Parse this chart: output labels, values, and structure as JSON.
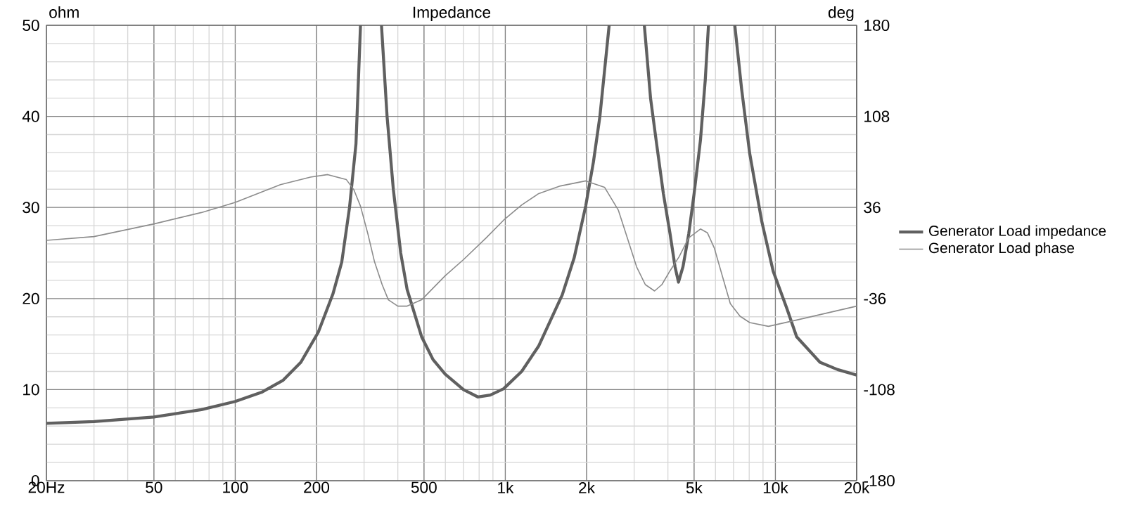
{
  "chart_data": {
    "type": "line",
    "title": "Impedance",
    "ylabel": "ohm",
    "y2label": "deg",
    "log": "x",
    "grid": true,
    "legend": "right",
    "xlim": [
      20,
      20000
    ],
    "ylim": [
      0,
      50
    ],
    "y2lim": [
      -180,
      180
    ],
    "xticks": [
      {
        "value": 20,
        "label": "20Hz"
      },
      50,
      100,
      200,
      500,
      {
        "value": 1000,
        "label": "1k"
      },
      {
        "value": 2000,
        "label": "2k"
      },
      {
        "value": 5000,
        "label": "5k"
      },
      {
        "value": 10000,
        "label": "10k"
      },
      {
        "value": 20000,
        "label": "20k"
      }
    ],
    "yticks": [
      0,
      10,
      20,
      30,
      40,
      50
    ],
    "y2ticks": [
      -180,
      -108,
      -36,
      36,
      108,
      180
    ],
    "series": [
      {
        "name": "Generator Load impedance",
        "color": "#606060",
        "axis": "y",
        "x": [
          20,
          30,
          50,
          75,
          100,
          125,
          150,
          175,
          203,
          230,
          248,
          265,
          280,
          291,
          320,
          348,
          365,
          385,
          410,
          433,
          490,
          540,
          599,
          700,
          791,
          880,
          986,
          1150,
          1330,
          1625,
          1800,
          1986,
          2120,
          2240,
          2424,
          2800,
          3272,
          3450,
          3617,
          3850,
          4075,
          4250,
          4378,
          4550,
          4778,
          5000,
          5280,
          5500,
          5653,
          6300,
          7077,
          7500,
          8036,
          8900,
          9815,
          11000,
          11990,
          14630,
          17000,
          20000
        ],
        "values": [
          6.3,
          6.5,
          7.0,
          7.8,
          8.7,
          9.7,
          11,
          13,
          16.3,
          20.5,
          24,
          30,
          37,
          50,
          null,
          50,
          40,
          32,
          25,
          21,
          15.8,
          13.3,
          11.7,
          10,
          9.2,
          9.4,
          10.1,
          12,
          14.8,
          20.4,
          24.5,
          30.2,
          35,
          40,
          50,
          null,
          50,
          42,
          37.4,
          31.5,
          27.1,
          23.5,
          21.8,
          23.5,
          27.1,
          31.5,
          37.4,
          44,
          50,
          null,
          50,
          43,
          35.9,
          28.5,
          23,
          19,
          15.8,
          13,
          12.2,
          11.6
        ]
      },
      {
        "name": "Generator Load phase",
        "color": "#8c8c8c",
        "axis": "y2",
        "x": [
          20,
          30,
          50,
          75,
          100,
          147,
          190,
          220,
          258,
          275,
          291,
          310,
          328,
          350,
          369,
          400,
          433,
          490,
          599,
          702,
          850,
          986,
          1150,
          1330,
          1600,
          1986,
          2330,
          2620,
          2800,
          3064,
          3300,
          3570,
          3800,
          4075,
          4400,
          4778,
          5280,
          5600,
          5940,
          6300,
          6810,
          7400,
          8036,
          9425,
          11990,
          20000
        ],
        "values": [
          10,
          13,
          23,
          32,
          40,
          54,
          60,
          62,
          58,
          50,
          37,
          15,
          -7,
          -25,
          -37,
          -42,
          -42,
          -37,
          -18,
          -5,
          12,
          26,
          38,
          47,
          53,
          57,
          52,
          34,
          15,
          -11,
          -25,
          -30,
          -25,
          -14,
          -3,
          12,
          19,
          16,
          4,
          -15,
          -40,
          -50,
          -55,
          -58,
          -53,
          -42
        ]
      }
    ]
  }
}
